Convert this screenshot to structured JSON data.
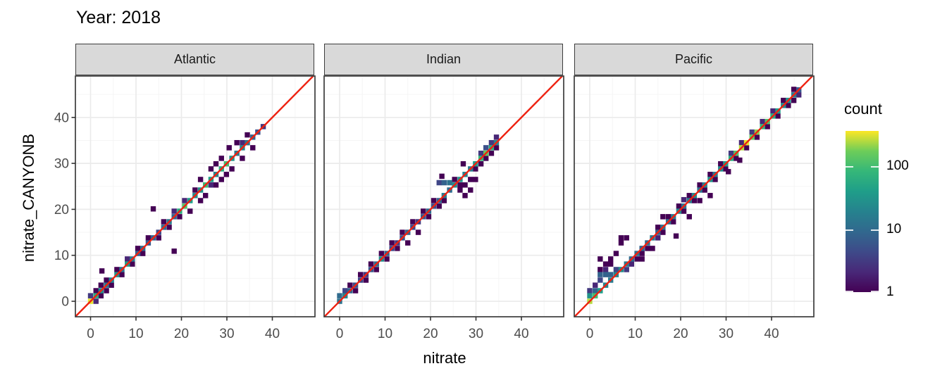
{
  "title": "Year: 2018",
  "legend": {
    "title": "count",
    "tick_values": [
      100,
      10,
      1
    ],
    "tick_labels": [
      "100",
      "10",
      "1"
    ]
  },
  "colors": {
    "identity_line": "#ee2211",
    "strip_bg": "#d9d9d9",
    "panel_border": "#3c3c3c",
    "grid_major": "#ebebeb",
    "grid_minor": "#f5f5f5",
    "tick_label": "#4d4d4d",
    "viridis_min": "#440154",
    "viridis_max": "#fde725"
  },
  "chart_data": {
    "type": "heatmap",
    "subtype": "bin2d-facets",
    "title": "Year: 2018",
    "xlabel": "nitrate",
    "ylabel": "nitrate_CANYONB",
    "x_ticks": [
      0,
      10,
      20,
      30,
      40
    ],
    "y_ticks": [
      0,
      10,
      20,
      30,
      40
    ],
    "x_tick_labels": [
      "0",
      "10",
      "20",
      "30",
      "40"
    ],
    "y_tick_labels": [
      "0",
      "10",
      "20",
      "30",
      "40"
    ],
    "minor_ticks": [
      5,
      15,
      25,
      35,
      45
    ],
    "x_range": [
      -3.3,
      49.5
    ],
    "y_range": [
      -3.4,
      49.0
    ],
    "bin_size": 1.15,
    "grid": true,
    "legend_position": "right",
    "color_scale": {
      "name": "viridis",
      "log": true,
      "domain": [
        1,
        362
      ]
    },
    "identity_line": true,
    "facets": [
      {
        "name": "Atlantic",
        "diag": [
          [
            0,
            320
          ],
          [
            1.2,
            60
          ],
          [
            2.3,
            25
          ],
          [
            3.5,
            12
          ],
          [
            4.6,
            18
          ],
          [
            5.8,
            30
          ],
          [
            6.9,
            12
          ],
          [
            8.1,
            40
          ],
          [
            9.2,
            15
          ],
          [
            10.4,
            8
          ],
          [
            11.5,
            10
          ],
          [
            12.7,
            6
          ],
          [
            13.8,
            8
          ],
          [
            15,
            4
          ],
          [
            16.1,
            10
          ],
          [
            17.3,
            15
          ],
          [
            18.4,
            8
          ],
          [
            19.6,
            60
          ],
          [
            20.7,
            120
          ],
          [
            21.9,
            40
          ],
          [
            23,
            25
          ],
          [
            24.2,
            30
          ],
          [
            25.3,
            90
          ],
          [
            26.5,
            40
          ],
          [
            27.6,
            20
          ],
          [
            28.8,
            60
          ],
          [
            29.9,
            100
          ],
          [
            31.1,
            30
          ],
          [
            32.2,
            15
          ],
          [
            33.4,
            20
          ],
          [
            34.5,
            12
          ],
          [
            35.7,
            8
          ],
          [
            36.8,
            5
          ],
          [
            38,
            3
          ]
        ],
        "near": [
          [
            0,
            1.2,
            3
          ],
          [
            1.2,
            0,
            2
          ],
          [
            1.2,
            2.3
          ],
          [
            2.3,
            1.2
          ],
          [
            2.5,
            6.6
          ],
          [
            2.3,
            3.5
          ],
          [
            3.5,
            2.3
          ],
          [
            3.5,
            4.6
          ],
          [
            4.6,
            3.5
          ],
          [
            5.8,
            6.9
          ],
          [
            6.9,
            5.8
          ],
          [
            8.1,
            9.2,
            2
          ],
          [
            9.2,
            8.1
          ],
          [
            10.4,
            11.5
          ],
          [
            11.5,
            10.4
          ],
          [
            12.7,
            13.8
          ],
          [
            13.8,
            20.1
          ],
          [
            15,
            13.8
          ],
          [
            16.1,
            17.3
          ],
          [
            17.3,
            16.1
          ],
          [
            18.4,
            10.9
          ],
          [
            18.4,
            19.6,
            2
          ],
          [
            19.6,
            18.4
          ],
          [
            20.7,
            21.9,
            2
          ],
          [
            21.9,
            19.6
          ],
          [
            23,
            24.2
          ],
          [
            24.2,
            21.9
          ],
          [
            24.2,
            26.5
          ],
          [
            25.3,
            23
          ],
          [
            26.5,
            25.3,
            2
          ],
          [
            26.5,
            28.8
          ],
          [
            27.6,
            25.3
          ],
          [
            27.6,
            29.9
          ],
          [
            28.8,
            26.5
          ],
          [
            28.8,
            31.1
          ],
          [
            29.9,
            27.6
          ],
          [
            30.5,
            33.4
          ],
          [
            31.1,
            28.8
          ],
          [
            32.2,
            34.5
          ],
          [
            33.4,
            31.1
          ],
          [
            33.4,
            34.5,
            2
          ],
          [
            34.5,
            36.2
          ],
          [
            35.7,
            33.4
          ]
        ]
      },
      {
        "name": "Indian",
        "diag": [
          [
            0,
            12
          ],
          [
            1.2,
            20
          ],
          [
            2.3,
            8
          ],
          [
            3.5,
            5
          ],
          [
            4.6,
            4
          ],
          [
            5.8,
            3
          ],
          [
            6.9,
            6
          ],
          [
            8.1,
            10
          ],
          [
            9.2,
            25
          ],
          [
            10.4,
            8
          ],
          [
            11.5,
            4
          ],
          [
            12.7,
            3
          ],
          [
            13.8,
            5
          ],
          [
            15,
            8
          ],
          [
            16.1,
            4
          ],
          [
            17.3,
            3
          ],
          [
            18.4,
            6
          ],
          [
            19.6,
            10
          ],
          [
            20.7,
            5
          ],
          [
            21.9,
            8
          ],
          [
            23,
            15
          ],
          [
            24.2,
            10
          ],
          [
            25.3,
            25
          ],
          [
            26.5,
            30
          ],
          [
            27.6,
            20
          ],
          [
            28.8,
            15
          ],
          [
            29.9,
            40
          ],
          [
            31.1,
            80
          ],
          [
            32.2,
            150
          ],
          [
            33.4,
            60
          ],
          [
            34.5,
            20
          ]
        ],
        "near": [
          [
            0,
            1.2,
            10
          ],
          [
            1.2,
            2.3,
            4
          ],
          [
            2.3,
            3.5
          ],
          [
            3.5,
            2.3
          ],
          [
            4.6,
            5.8
          ],
          [
            5.8,
            4.6
          ],
          [
            6.9,
            8.1
          ],
          [
            8.1,
            6.9
          ],
          [
            9.2,
            10.4
          ],
          [
            10.4,
            9.2
          ],
          [
            11.5,
            12.7
          ],
          [
            12.7,
            11.5
          ],
          [
            13.8,
            15
          ],
          [
            15,
            12.7
          ],
          [
            16.1,
            17.3
          ],
          [
            17.3,
            15
          ],
          [
            18.4,
            19.6
          ],
          [
            19.6,
            18.4
          ],
          [
            20.7,
            21.9
          ],
          [
            21.9,
            20.7
          ],
          [
            23,
            21.9
          ],
          [
            25.3,
            26.5
          ],
          [
            26.5,
            25.3
          ],
          [
            21.9,
            25.8,
            4
          ],
          [
            23,
            25.8,
            8
          ],
          [
            24.2,
            25.8,
            12
          ],
          [
            22.5,
            27.2
          ],
          [
            26.5,
            24.2
          ],
          [
            27.6,
            25.3
          ],
          [
            27.6,
            23
          ],
          [
            28.8,
            26.5
          ],
          [
            28.8,
            24.2
          ],
          [
            29.9,
            26.5
          ],
          [
            29.9,
            28.8
          ],
          [
            27.2,
            29.9
          ],
          [
            31.1,
            29.9
          ],
          [
            32.2,
            31.1
          ],
          [
            33.4,
            32.2
          ],
          [
            31.1,
            32.2,
            3
          ],
          [
            32.2,
            33.4,
            5
          ],
          [
            33.4,
            34.5,
            3
          ],
          [
            34.5,
            33.4
          ],
          [
            34.5,
            35.7,
            2
          ]
        ]
      },
      {
        "name": "Pacific",
        "diag": [
          [
            0,
            250
          ],
          [
            1.2,
            100
          ],
          [
            2.3,
            40
          ],
          [
            3.5,
            20
          ],
          [
            4.6,
            15
          ],
          [
            5.8,
            20
          ],
          [
            6.9,
            25
          ],
          [
            8.1,
            15
          ],
          [
            9.2,
            10
          ],
          [
            10.4,
            12
          ],
          [
            11.5,
            8
          ],
          [
            12.7,
            10
          ],
          [
            13.8,
            15
          ],
          [
            15,
            8
          ],
          [
            16.1,
            12
          ],
          [
            17.3,
            10
          ],
          [
            18.4,
            15
          ],
          [
            19.6,
            20
          ],
          [
            20.7,
            12
          ],
          [
            21.9,
            15
          ],
          [
            23,
            25
          ],
          [
            24.2,
            12
          ],
          [
            25.3,
            20
          ],
          [
            26.5,
            30
          ],
          [
            27.6,
            15
          ],
          [
            28.8,
            25
          ],
          [
            29.9,
            40
          ],
          [
            31.1,
            60
          ],
          [
            32.2,
            120
          ],
          [
            33.4,
            250
          ],
          [
            34.5,
            320
          ],
          [
            35.7,
            150
          ],
          [
            36.8,
            200
          ],
          [
            38,
            80
          ],
          [
            39.1,
            120
          ],
          [
            40.3,
            60
          ],
          [
            41.4,
            40
          ],
          [
            42.6,
            25
          ],
          [
            43.7,
            30
          ],
          [
            44.9,
            15
          ],
          [
            46,
            6
          ]
        ],
        "near": [
          [
            0,
            1.2,
            30
          ],
          [
            1.2,
            2.3,
            8
          ],
          [
            0,
            2.3,
            3
          ],
          [
            1.2,
            3.5,
            2
          ],
          [
            2.3,
            4.6,
            4
          ],
          [
            2.3,
            5.8,
            8
          ],
          [
            3.5,
            5.8,
            8
          ],
          [
            4.6,
            5.8,
            8
          ],
          [
            5.8,
            6.9,
            4
          ],
          [
            2.3,
            6.9
          ],
          [
            3.5,
            8.1
          ],
          [
            4.6,
            9.2
          ],
          [
            2.3,
            9.2
          ],
          [
            5.8,
            10.4
          ],
          [
            6.9,
            12.7
          ],
          [
            6.9,
            13.8
          ],
          [
            8.1,
            13.8
          ],
          [
            4.6,
            8.1
          ],
          [
            3.5,
            6.9,
            2
          ],
          [
            8.1,
            6.9,
            3
          ],
          [
            9.2,
            8.1,
            2
          ],
          [
            10.4,
            9.2
          ],
          [
            11.5,
            10.4
          ],
          [
            12.7,
            11.5
          ],
          [
            13.8,
            11.5
          ],
          [
            11.5,
            9.2
          ],
          [
            19,
            14.2
          ],
          [
            15,
            16.1
          ],
          [
            16.1,
            15
          ],
          [
            17.3,
            18.4
          ],
          [
            18.4,
            17.3
          ],
          [
            19.6,
            20.7
          ],
          [
            20.7,
            19.6
          ],
          [
            21.9,
            23
          ],
          [
            23,
            21.9
          ],
          [
            24.2,
            25.3
          ],
          [
            25.3,
            24.2
          ],
          [
            26.5,
            27.6
          ],
          [
            27.6,
            26.5
          ],
          [
            28.8,
            29.9
          ],
          [
            29.9,
            28.8
          ],
          [
            16.1,
            18.4
          ],
          [
            21.9,
            18.4
          ],
          [
            24.2,
            21.9
          ],
          [
            26.5,
            23
          ],
          [
            15,
            13.8,
            2
          ],
          [
            20.7,
            22.1,
            2
          ],
          [
            31.1,
            32.2,
            3
          ],
          [
            32.2,
            31.1
          ],
          [
            33.4,
            34.5,
            2
          ],
          [
            34.5,
            33.4
          ],
          [
            35.7,
            36.8,
            3
          ],
          [
            36.8,
            35.7
          ],
          [
            38,
            39.1,
            2
          ],
          [
            39.1,
            38
          ],
          [
            40.3,
            41.4,
            2
          ],
          [
            41.4,
            40.3
          ],
          [
            42.6,
            43.7
          ],
          [
            43.7,
            42.6
          ],
          [
            44.9,
            46.1
          ],
          [
            44.9,
            43.7
          ],
          [
            46,
            44.9,
            2
          ],
          [
            30.5,
            28.2
          ],
          [
            33,
            30.7
          ]
        ]
      }
    ]
  }
}
